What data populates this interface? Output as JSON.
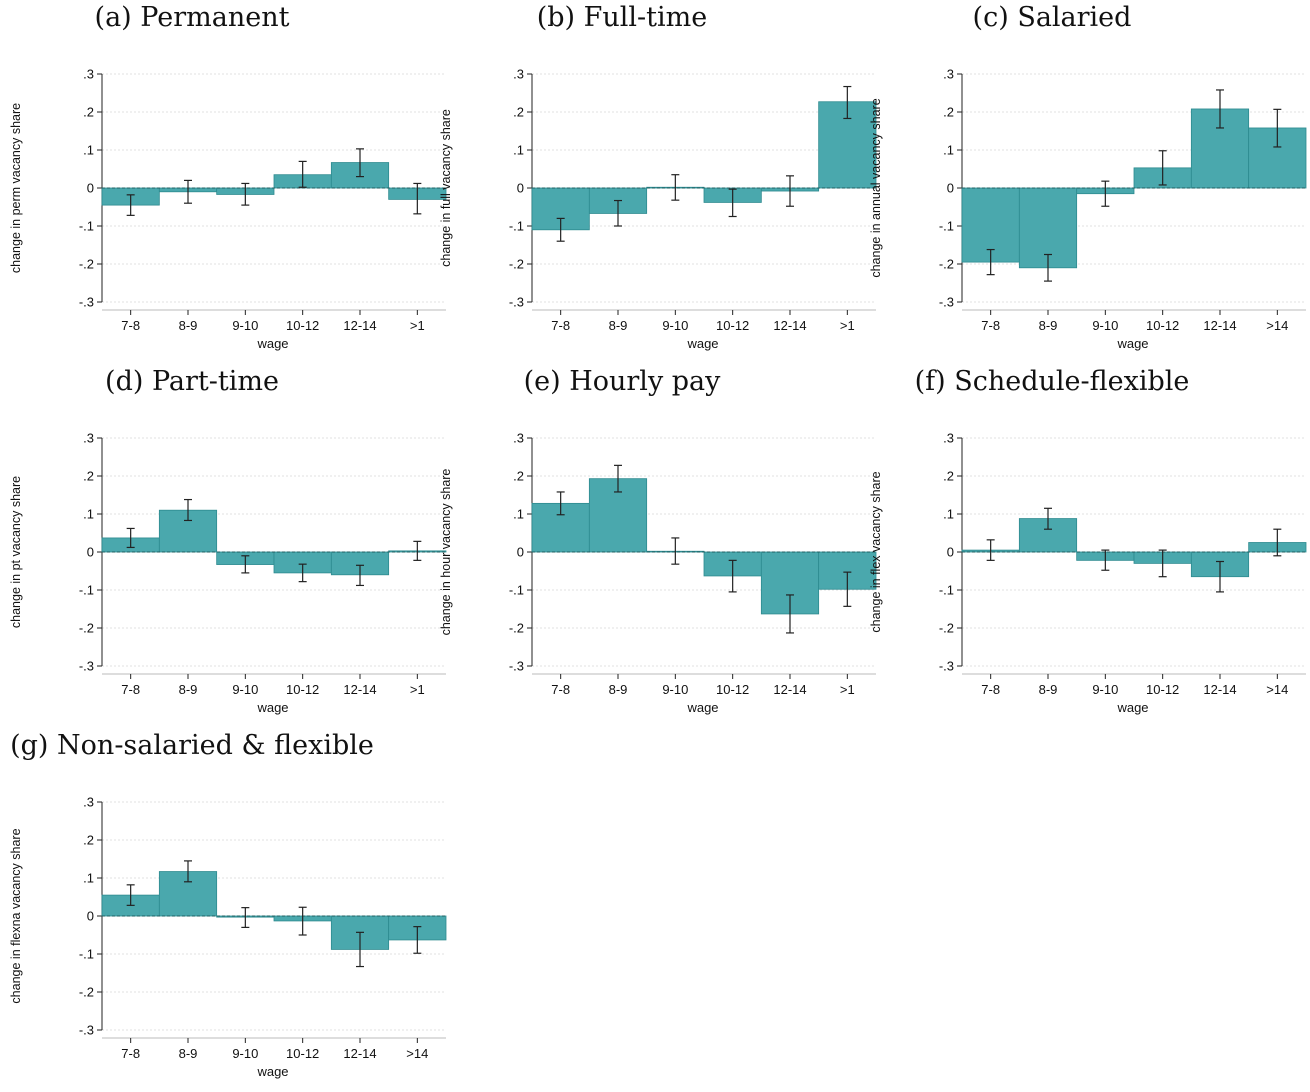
{
  "chart_style": {
    "bar_color": "#4aa8ad",
    "bar_edge": "#2d8a8f",
    "errorbar_color": "#222222",
    "grid_color": "#e2e2e2"
  },
  "chart_data": [
    {
      "type": "bar",
      "title": "(a) Permanent",
      "xlabel": "wage",
      "ylabel": "change in perm vacancy share",
      "categories": [
        "7-8",
        "8-9",
        "9-10",
        "10-12",
        "12-14",
        ">1"
      ],
      "values": [
        -0.045,
        -0.01,
        -0.017,
        0.035,
        0.067,
        -0.03
      ],
      "ci_low": [
        -0.072,
        -0.04,
        -0.045,
        0.002,
        0.03,
        -0.068
      ],
      "ci_high": [
        -0.018,
        0.02,
        0.012,
        0.07,
        0.103,
        0.012
      ],
      "yticks": [
        ".3",
        ".2",
        ".1",
        "0",
        "-.1",
        "-.2",
        "-.3"
      ],
      "ylim": [
        -0.3,
        0.3
      ],
      "grid": true
    },
    {
      "type": "bar",
      "title": "(b) Full-time",
      "xlabel": "wage",
      "ylabel": "change in full vacancy share",
      "categories": [
        "7-8",
        "8-9",
        "9-10",
        "10-12",
        "12-14",
        ">1"
      ],
      "values": [
        -0.11,
        -0.067,
        0.002,
        -0.038,
        -0.008,
        0.227
      ],
      "ci_low": [
        -0.14,
        -0.1,
        -0.032,
        -0.075,
        -0.048,
        0.183
      ],
      "ci_high": [
        -0.08,
        -0.033,
        0.035,
        -0.003,
        0.032,
        0.267
      ],
      "yticks": [
        ".3",
        ".2",
        ".1",
        "0",
        "-.1",
        "-.2",
        "-.3"
      ],
      "ylim": [
        -0.3,
        0.3
      ],
      "grid": true
    },
    {
      "type": "bar",
      "title": "(c) Salaried",
      "xlabel": "wage",
      "ylabel": "change in annual vacancy share",
      "categories": [
        "7-8",
        "8-9",
        "9-10",
        "10-12",
        "12-14",
        ">14"
      ],
      "values": [
        -0.195,
        -0.21,
        -0.015,
        0.053,
        0.208,
        0.158
      ],
      "ci_low": [
        -0.228,
        -0.245,
        -0.048,
        0.008,
        0.158,
        0.108
      ],
      "ci_high": [
        -0.162,
        -0.175,
        0.018,
        0.098,
        0.258,
        0.207
      ],
      "yticks": [
        ".3",
        ".2",
        ".1",
        "0",
        "-.1",
        "-.2",
        "-.3"
      ],
      "ylim": [
        -0.3,
        0.3
      ],
      "grid": true
    },
    {
      "type": "bar",
      "title": "(d) Part-time",
      "xlabel": "wage",
      "ylabel": "change in pt vacancy share",
      "categories": [
        "7-8",
        "8-9",
        "9-10",
        "10-12",
        "12-14",
        ">1"
      ],
      "values": [
        0.037,
        0.11,
        -0.033,
        -0.055,
        -0.06,
        0.003
      ],
      "ci_low": [
        0.012,
        0.083,
        -0.055,
        -0.078,
        -0.088,
        -0.022
      ],
      "ci_high": [
        0.062,
        0.138,
        -0.01,
        -0.032,
        -0.035,
        0.028
      ],
      "yticks": [
        ".3",
        ".2",
        ".1",
        "0",
        "-.1",
        "-.2",
        "-.3"
      ],
      "ylim": [
        -0.3,
        0.3
      ],
      "grid": true
    },
    {
      "type": "bar",
      "title": "(e) Hourly pay",
      "xlabel": "wage",
      "ylabel": "change in hour vacancy share",
      "categories": [
        "7-8",
        "8-9",
        "9-10",
        "10-12",
        "12-14",
        ">1"
      ],
      "values": [
        0.128,
        0.193,
        0.002,
        -0.063,
        -0.163,
        -0.098
      ],
      "ci_low": [
        0.098,
        0.158,
        -0.032,
        -0.105,
        -0.213,
        -0.143
      ],
      "ci_high": [
        0.158,
        0.228,
        0.037,
        -0.022,
        -0.113,
        -0.053
      ],
      "yticks": [
        ".3",
        ".2",
        ".1",
        "0",
        "-.1",
        "-.2",
        "-.3"
      ],
      "ylim": [
        -0.3,
        0.3
      ],
      "grid": true
    },
    {
      "type": "bar",
      "title": "(f) Schedule-flexible",
      "xlabel": "wage",
      "ylabel": "change in flex vacancy share",
      "categories": [
        "7-8",
        "8-9",
        "9-10",
        "10-12",
        "12-14",
        ">14"
      ],
      "values": [
        0.005,
        0.088,
        -0.022,
        -0.03,
        -0.065,
        0.025
      ],
      "ci_low": [
        -0.022,
        0.06,
        -0.048,
        -0.065,
        -0.105,
        -0.01
      ],
      "ci_high": [
        0.032,
        0.115,
        0.005,
        0.005,
        -0.025,
        0.06
      ],
      "yticks": [
        ".3",
        ".2",
        ".1",
        "0",
        "-.1",
        "-.2",
        "-.3"
      ],
      "ylim": [
        -0.3,
        0.3
      ],
      "grid": true
    },
    {
      "type": "bar",
      "title": "(g) Non-salaried & flexible",
      "xlabel": "wage",
      "ylabel": "change in flexna vacancy share",
      "categories": [
        "7-8",
        "8-9",
        "9-10",
        "10-12",
        "12-14",
        ">14"
      ],
      "values": [
        0.055,
        0.117,
        -0.003,
        -0.013,
        -0.088,
        -0.063
      ],
      "ci_low": [
        0.028,
        0.09,
        -0.03,
        -0.05,
        -0.133,
        -0.098
      ],
      "ci_high": [
        0.082,
        0.145,
        0.022,
        0.023,
        -0.043,
        -0.028
      ],
      "yticks": [
        ".3",
        ".2",
        ".1",
        "0",
        "-.1",
        "-.2",
        "-.3"
      ],
      "ylim": [
        -0.3,
        0.3
      ],
      "grid": true
    }
  ]
}
